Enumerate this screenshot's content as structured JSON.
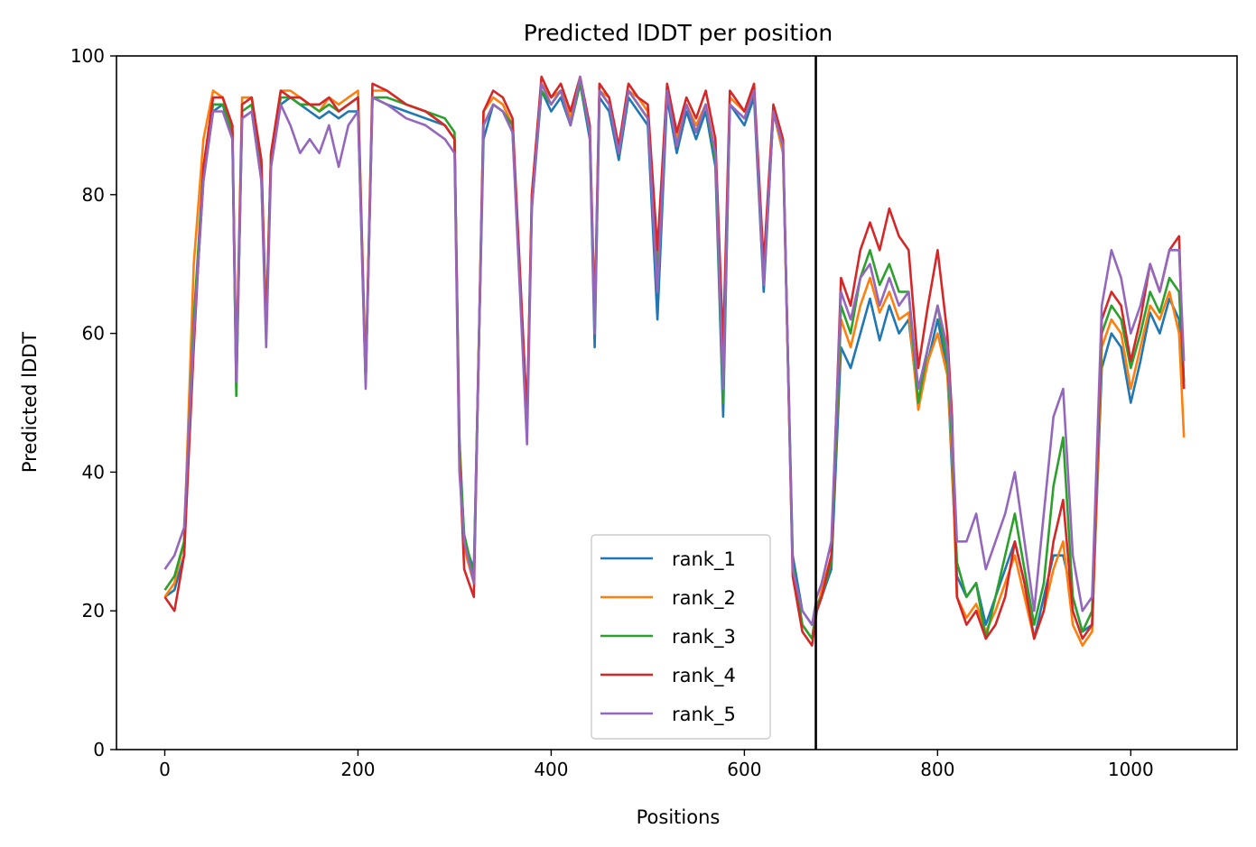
{
  "chart_data": {
    "type": "line",
    "title": "Predicted lDDT per position",
    "xlabel": "Positions",
    "ylabel": "Predicted lDDT",
    "xlim": [
      -50,
      1110
    ],
    "ylim": [
      0,
      100
    ],
    "xticks": [
      0,
      200,
      400,
      600,
      800,
      1000
    ],
    "yticks": [
      0,
      20,
      40,
      60,
      80,
      100
    ],
    "grid": false,
    "legend_position": "lower center",
    "vline_x": 674,
    "series": [
      {
        "name": "rank_1",
        "color": "#1f77b4",
        "x": [
          0,
          10,
          20,
          30,
          40,
          50,
          60,
          70,
          74,
          80,
          90,
          100,
          105,
          110,
          120,
          130,
          140,
          150,
          160,
          170,
          180,
          190,
          200,
          208,
          215,
          230,
          250,
          270,
          290,
          300,
          305,
          310,
          320,
          330,
          340,
          350,
          360,
          375,
          380,
          390,
          400,
          410,
          420,
          430,
          440,
          445,
          450,
          460,
          470,
          480,
          490,
          500,
          510,
          520,
          530,
          540,
          550,
          560,
          570,
          578,
          585,
          600,
          610,
          620,
          630,
          640,
          650,
          660,
          670,
          675,
          680,
          690,
          700,
          710,
          720,
          730,
          740,
          750,
          760,
          770,
          780,
          790,
          800,
          810,
          815,
          820,
          830,
          840,
          850,
          860,
          870,
          880,
          890,
          900,
          910,
          920,
          930,
          940,
          950,
          960,
          970,
          980,
          990,
          1000,
          1010,
          1020,
          1030,
          1040,
          1050,
          1055
        ],
        "y": [
          22,
          23,
          28,
          60,
          82,
          92,
          93,
          88,
          52,
          91,
          92,
          82,
          60,
          85,
          93,
          94,
          93,
          92,
          91,
          92,
          91,
          92,
          92,
          53,
          94,
          93,
          92,
          91,
          90,
          88,
          45,
          30,
          26,
          88,
          93,
          92,
          89,
          48,
          78,
          95,
          92,
          94,
          90,
          96,
          88,
          58,
          94,
          92,
          85,
          94,
          92,
          90,
          62,
          94,
          86,
          92,
          88,
          92,
          84,
          48,
          93,
          90,
          94,
          66,
          92,
          86,
          28,
          20,
          18,
          20,
          22,
          26,
          58,
          55,
          60,
          65,
          59,
          64,
          60,
          62,
          50,
          56,
          62,
          55,
          40,
          25,
          22,
          24,
          18,
          22,
          26,
          30,
          24,
          16,
          22,
          28,
          28,
          22,
          17,
          18,
          55,
          60,
          58,
          50,
          56,
          63,
          60,
          65,
          62,
          52
        ]
      },
      {
        "name": "rank_2",
        "color": "#ff7f0e",
        "x": [
          0,
          10,
          20,
          30,
          40,
          50,
          60,
          70,
          74,
          80,
          90,
          100,
          105,
          110,
          120,
          130,
          140,
          150,
          160,
          170,
          180,
          190,
          200,
          208,
          215,
          230,
          250,
          270,
          290,
          300,
          305,
          310,
          320,
          330,
          340,
          350,
          360,
          375,
          380,
          390,
          400,
          410,
          420,
          430,
          440,
          445,
          450,
          460,
          470,
          480,
          490,
          500,
          510,
          520,
          530,
          540,
          550,
          560,
          570,
          578,
          585,
          600,
          610,
          620,
          630,
          640,
          650,
          660,
          670,
          675,
          680,
          690,
          700,
          710,
          720,
          730,
          740,
          750,
          760,
          770,
          780,
          790,
          800,
          810,
          815,
          820,
          830,
          840,
          850,
          860,
          870,
          880,
          890,
          900,
          910,
          920,
          930,
          940,
          950,
          960,
          970,
          980,
          990,
          1000,
          1010,
          1020,
          1030,
          1040,
          1050,
          1055
        ],
        "y": [
          22,
          24,
          30,
          70,
          88,
          95,
          94,
          89,
          55,
          94,
          94,
          84,
          62,
          86,
          95,
          95,
          94,
          93,
          92,
          94,
          93,
          94,
          95,
          54,
          95,
          95,
          93,
          92,
          90,
          88,
          44,
          29,
          24,
          92,
          94,
          93,
          90,
          46,
          80,
          96,
          94,
          95,
          91,
          97,
          89,
          62,
          95,
          94,
          86,
          95,
          94,
          92,
          70,
          95,
          88,
          93,
          90,
          93,
          86,
          55,
          94,
          92,
          95,
          68,
          92,
          86,
          26,
          18,
          16,
          20,
          23,
          28,
          62,
          58,
          64,
          68,
          63,
          66,
          62,
          63,
          49,
          56,
          60,
          54,
          42,
          22,
          19,
          21,
          17,
          20,
          24,
          28,
          22,
          16,
          20,
          26,
          30,
          18,
          15,
          17,
          58,
          62,
          60,
          52,
          58,
          64,
          62,
          66,
          60,
          45
        ]
      },
      {
        "name": "rank_3",
        "color": "#2ca02c",
        "x": [
          0,
          10,
          20,
          30,
          40,
          50,
          60,
          70,
          74,
          80,
          90,
          100,
          105,
          110,
          120,
          130,
          140,
          150,
          160,
          170,
          180,
          190,
          200,
          208,
          215,
          230,
          250,
          270,
          290,
          300,
          305,
          310,
          320,
          330,
          340,
          350,
          360,
          375,
          380,
          390,
          400,
          410,
          420,
          430,
          440,
          445,
          450,
          460,
          470,
          480,
          490,
          500,
          510,
          520,
          530,
          540,
          550,
          560,
          570,
          578,
          585,
          600,
          610,
          620,
          630,
          640,
          650,
          660,
          670,
          675,
          680,
          690,
          700,
          710,
          720,
          730,
          740,
          750,
          760,
          770,
          780,
          790,
          800,
          810,
          815,
          820,
          830,
          840,
          850,
          860,
          870,
          880,
          890,
          900,
          910,
          920,
          930,
          940,
          950,
          960,
          970,
          980,
          990,
          1000,
          1010,
          1020,
          1030,
          1040,
          1050,
          1055
        ],
        "y": [
          23,
          25,
          30,
          62,
          84,
          93,
          93,
          89,
          51,
          92,
          93,
          83,
          61,
          86,
          94,
          94,
          93,
          93,
          92,
          93,
          92,
          93,
          94,
          53,
          94,
          94,
          93,
          92,
          91,
          89,
          43,
          31,
          25,
          90,
          93,
          92,
          90,
          47,
          79,
          95,
          93,
          95,
          90,
          96,
          89,
          60,
          95,
          93,
          86,
          95,
          93,
          91,
          68,
          95,
          87,
          93,
          89,
          93,
          85,
          50,
          93,
          91,
          95,
          67,
          92,
          87,
          27,
          18,
          16,
          21,
          22,
          27,
          64,
          60,
          68,
          72,
          67,
          70,
          66,
          66,
          50,
          58,
          64,
          56,
          44,
          27,
          22,
          24,
          16,
          22,
          28,
          34,
          26,
          18,
          24,
          38,
          45,
          22,
          17,
          20,
          60,
          64,
          62,
          55,
          60,
          66,
          63,
          68,
          66,
          53
        ]
      },
      {
        "name": "rank_4",
        "color": "#d62728",
        "x": [
          0,
          10,
          20,
          30,
          40,
          50,
          60,
          70,
          74,
          80,
          90,
          100,
          105,
          110,
          120,
          130,
          140,
          150,
          160,
          170,
          180,
          190,
          200,
          208,
          215,
          230,
          250,
          270,
          290,
          300,
          305,
          310,
          320,
          330,
          340,
          350,
          360,
          375,
          380,
          390,
          400,
          410,
          420,
          430,
          440,
          445,
          450,
          460,
          470,
          480,
          490,
          500,
          510,
          520,
          530,
          540,
          550,
          560,
          570,
          578,
          585,
          600,
          610,
          620,
          630,
          640,
          650,
          660,
          670,
          675,
          680,
          690,
          700,
          710,
          720,
          730,
          740,
          750,
          760,
          770,
          780,
          790,
          800,
          810,
          815,
          820,
          830,
          840,
          850,
          860,
          870,
          880,
          890,
          900,
          910,
          920,
          930,
          940,
          950,
          960,
          970,
          980,
          990,
          1000,
          1010,
          1020,
          1030,
          1040,
          1050,
          1055
        ],
        "y": [
          22,
          20,
          28,
          58,
          84,
          94,
          94,
          90,
          53,
          93,
          94,
          85,
          60,
          86,
          95,
          94,
          94,
          93,
          93,
          94,
          92,
          93,
          94,
          53,
          96,
          95,
          93,
          92,
          90,
          88,
          42,
          26,
          22,
          92,
          95,
          94,
          91,
          48,
          80,
          97,
          94,
          96,
          92,
          97,
          90,
          62,
          96,
          94,
          87,
          96,
          94,
          93,
          72,
          96,
          89,
          94,
          91,
          95,
          88,
          58,
          95,
          92,
          96,
          70,
          93,
          88,
          25,
          17,
          15,
          20,
          22,
          28,
          68,
          64,
          72,
          76,
          72,
          78,
          74,
          72,
          55,
          64,
          72,
          60,
          48,
          22,
          18,
          20,
          16,
          18,
          22,
          30,
          24,
          16,
          20,
          30,
          36,
          20,
          16,
          18,
          62,
          66,
          64,
          56,
          62,
          70,
          66,
          72,
          74,
          52
        ]
      },
      {
        "name": "rank_5",
        "color": "#9467bd",
        "x": [
          0,
          10,
          20,
          30,
          40,
          50,
          60,
          70,
          74,
          80,
          90,
          100,
          105,
          110,
          120,
          130,
          140,
          150,
          160,
          170,
          180,
          190,
          200,
          208,
          215,
          230,
          250,
          270,
          290,
          300,
          305,
          310,
          320,
          330,
          340,
          350,
          360,
          375,
          380,
          390,
          400,
          410,
          420,
          430,
          440,
          445,
          450,
          460,
          470,
          480,
          490,
          500,
          510,
          520,
          530,
          540,
          550,
          560,
          570,
          578,
          585,
          600,
          610,
          620,
          630,
          640,
          650,
          660,
          670,
          675,
          680,
          690,
          700,
          710,
          720,
          730,
          740,
          750,
          760,
          770,
          780,
          790,
          800,
          810,
          815,
          820,
          830,
          840,
          850,
          860,
          870,
          880,
          890,
          900,
          910,
          920,
          930,
          940,
          950,
          960,
          970,
          980,
          990,
          1000,
          1010,
          1020,
          1030,
          1040,
          1050,
          1055
        ],
        "y": [
          26,
          28,
          32,
          60,
          82,
          92,
          92,
          88,
          53,
          91,
          92,
          82,
          58,
          84,
          93,
          90,
          86,
          88,
          86,
          90,
          84,
          90,
          92,
          52,
          94,
          93,
          91,
          90,
          88,
          86,
          40,
          30,
          24,
          90,
          93,
          92,
          89,
          44,
          78,
          96,
          93,
          95,
          90,
          97,
          89,
          60,
          95,
          93,
          86,
          95,
          93,
          91,
          66,
          95,
          87,
          93,
          89,
          93,
          86,
          52,
          93,
          91,
          95,
          67,
          92,
          87,
          26,
          20,
          18,
          22,
          24,
          30,
          66,
          62,
          68,
          70,
          64,
          68,
          64,
          66,
          52,
          58,
          64,
          58,
          46,
          30,
          30,
          34,
          26,
          30,
          34,
          40,
          30,
          20,
          34,
          48,
          52,
          28,
          20,
          22,
          64,
          72,
          68,
          60,
          64,
          70,
          66,
          72,
          72,
          56
        ]
      }
    ]
  }
}
